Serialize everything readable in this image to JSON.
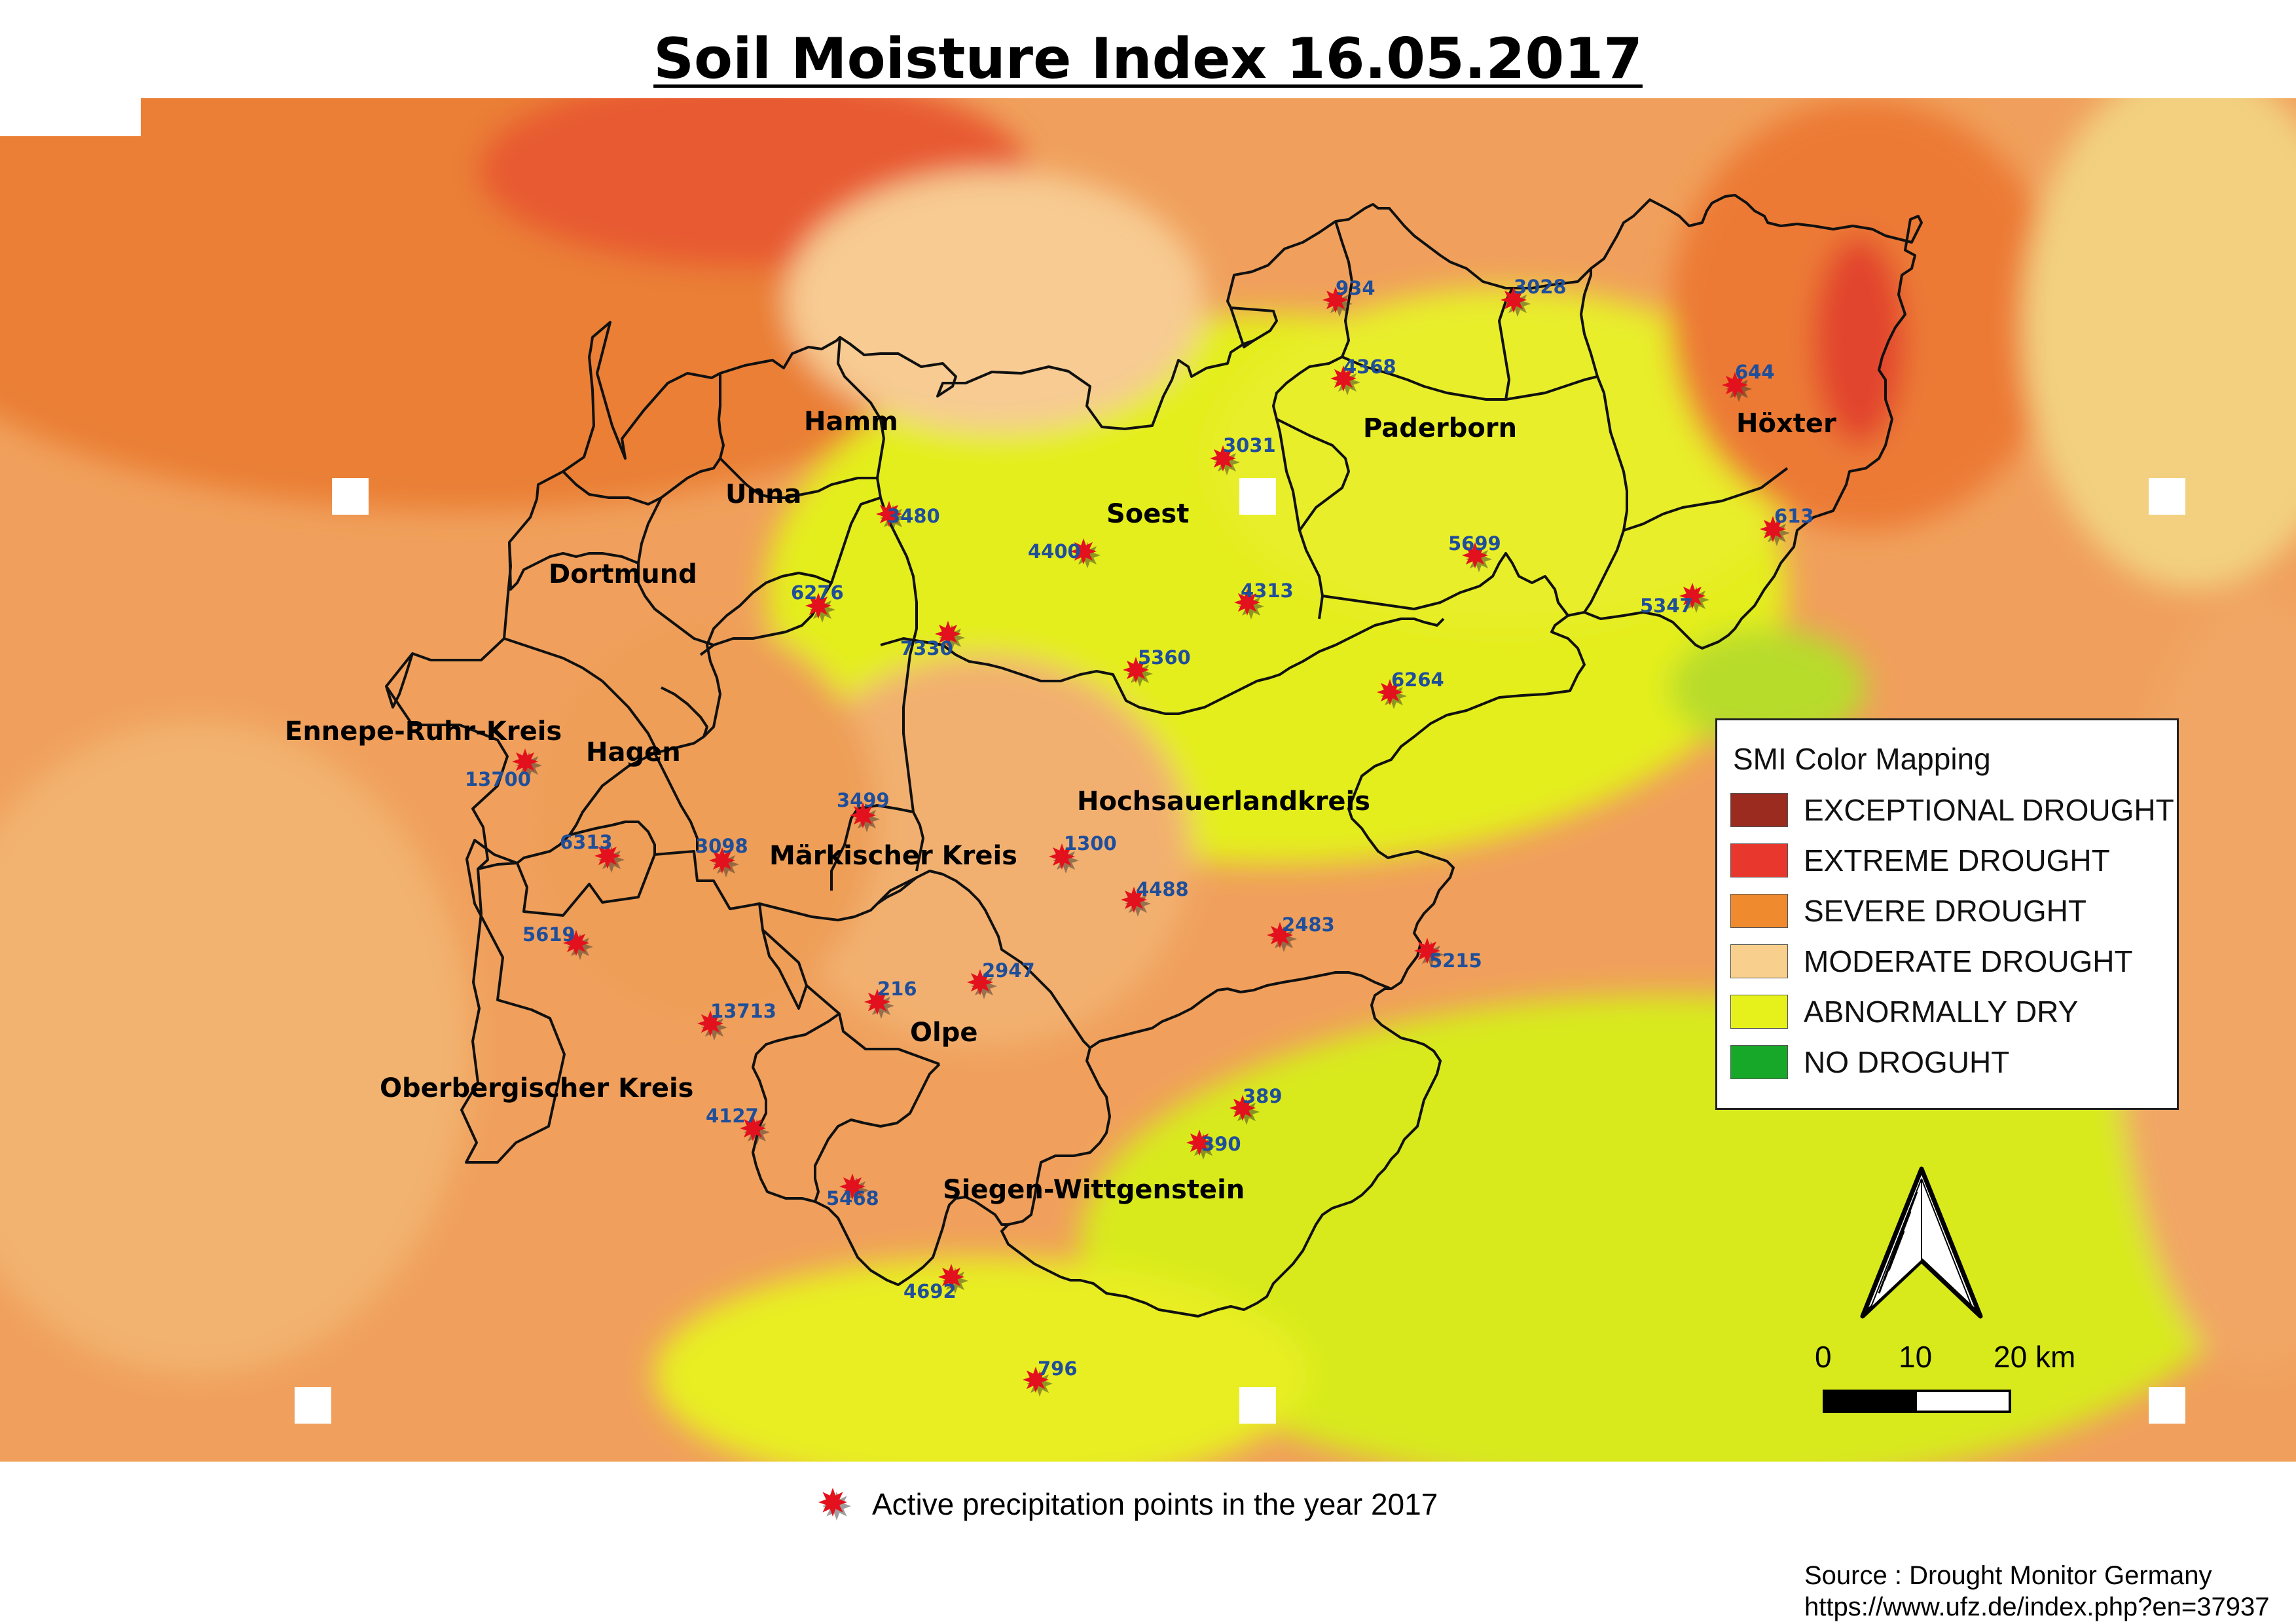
{
  "title": "Soil Moisture Index 16.05.2017",
  "legend": {
    "title": "SMI Color Mapping",
    "items": [
      {
        "label": "EXCEPTIONAL DROUGHT",
        "color": "#9b2a1f"
      },
      {
        "label": "EXTREME DROUGHT",
        "color": "#e8372d"
      },
      {
        "label": "SEVERE DROUGHT",
        "color": "#f08a2e"
      },
      {
        "label": "MODERATE DROUGHT",
        "color": "#f8cf8c"
      },
      {
        "label": "ABNORMALLY DRY",
        "color": "#e6f01a"
      },
      {
        "label": "NO DROGUHT",
        "color": "#17a82a"
      }
    ]
  },
  "scale": {
    "labels": [
      "0",
      "10",
      "20 km"
    ]
  },
  "north_arrow": {
    "icon": "north-arrow-icon"
  },
  "point_legend": {
    "label": "Active precipitation points in the year 2017",
    "icon": "red-star-icon",
    "color": "#e3101d"
  },
  "source": {
    "line1": "Source : Drought Monitor Germany",
    "line2": "https://www.ufz.de/index.php?en=37937"
  },
  "regions": [
    "Hamm",
    "Unna",
    "Dortmund",
    "Soest",
    "Paderborn",
    "Höxter",
    "Ennepe-Ruhr-Kreis",
    "Hagen",
    "Märkischer Kreis",
    "Hochsauerlandkreis",
    "Olpe",
    "Oberbergischer Kreis",
    "Siegen-Wittgenstein"
  ],
  "stations": [
    "934",
    "3028",
    "4368",
    "644",
    "3031",
    "3480",
    "4400",
    "613",
    "5699",
    "6276",
    "4313",
    "5347",
    "7330",
    "5360",
    "6264",
    "13700",
    "3499",
    "6313",
    "3098",
    "1300",
    "4488",
    "5619",
    "2483",
    "5215",
    "216",
    "2947",
    "13713",
    "389",
    "4127",
    "390",
    "5468",
    "4692",
    "796"
  ]
}
